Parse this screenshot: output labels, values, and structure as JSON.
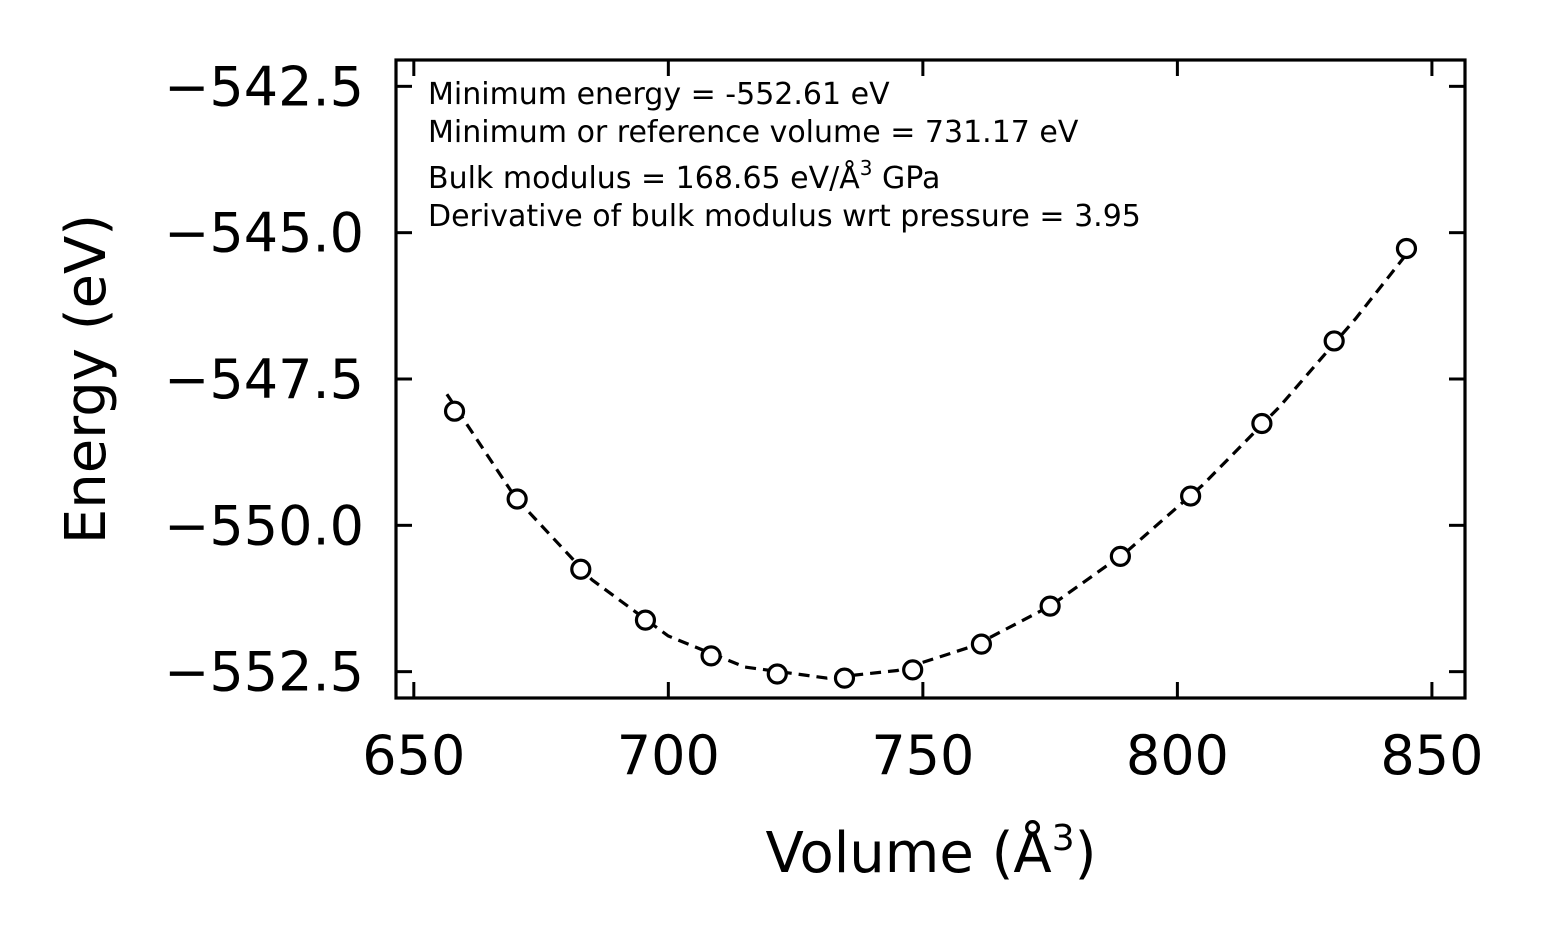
{
  "chart_data": {
    "type": "scatter",
    "title": "",
    "xlabel": "Volume (Å",
    "xlabel_sup": "3",
    "xlabel_end": ")",
    "ylabel": "Energy (eV)",
    "xlim": [
      646.5,
      856.5
    ],
    "ylim": [
      -552.95,
      -542.05
    ],
    "xticks": [
      650,
      700,
      750,
      800,
      850
    ],
    "yticks": [
      -542.5,
      -545.0,
      -547.5,
      -550.0,
      -552.5
    ],
    "xtick_labels": [
      "650",
      "700",
      "750",
      "800",
      "850"
    ],
    "ytick_labels": [
      "−542.5",
      "−545.0",
      "−547.5",
      "−550.0",
      "−552.5"
    ],
    "series": [
      {
        "name": "Data",
        "style": "markers",
        "x": [
          658.0,
          670.3,
          682.8,
          695.5,
          708.4,
          721.4,
          734.6,
          748.0,
          761.5,
          775.0,
          788.8,
          802.6,
          816.6,
          830.8,
          845.0
        ],
        "y": [
          -548.05,
          -549.55,
          -550.75,
          -551.62,
          -552.23,
          -552.54,
          -552.61,
          -552.47,
          -552.03,
          -551.38,
          -550.53,
          -549.5,
          -548.26,
          -546.85,
          -545.27
        ]
      },
      {
        "name": "Fit",
        "style": "dashed-line",
        "x": [
          656.5,
          670.0,
          685.0,
          700.0,
          715.0,
          731.17,
          745.0,
          760.0,
          775.0,
          790.0,
          805.0,
          820.0,
          835.0,
          846.0
        ],
        "y": [
          -547.76,
          -549.53,
          -550.93,
          -551.89,
          -552.42,
          -552.61,
          -552.48,
          -552.06,
          -551.38,
          -550.45,
          -549.31,
          -547.98,
          -546.47,
          -545.26
        ]
      }
    ],
    "annotations": [
      "Minimum energy = -552.61 eV",
      "Minimum or reference volume = 731.17 eV",
      "Bulk modulus = 168.65 eV/Å",
      "Derivative of bulk modulus wrt pressure = 3.95"
    ],
    "annotation_sup": "3",
    "annotation_tail": " GPa",
    "grid": false,
    "legend": "none",
    "colors": {
      "line": "#000000",
      "marker_edge": "#000000",
      "marker_face": "#ffffff",
      "background": "#ffffff"
    }
  }
}
